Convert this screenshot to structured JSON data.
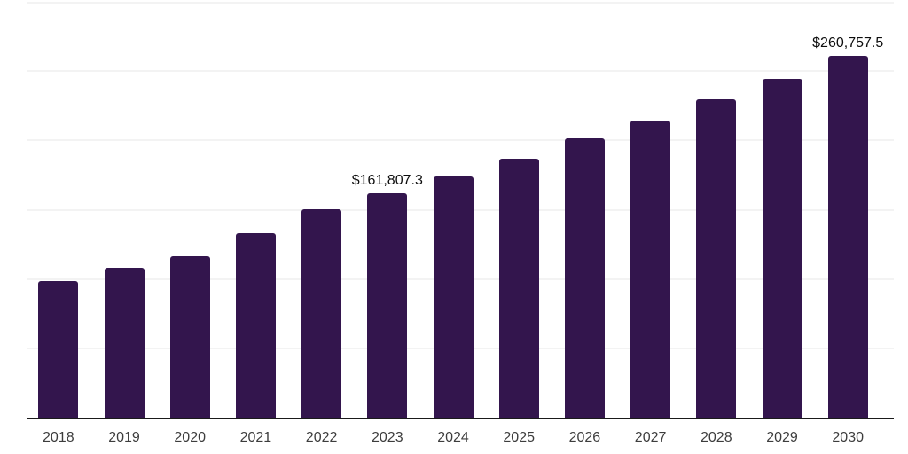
{
  "chart_data": {
    "type": "bar",
    "title": "",
    "xlabel": "",
    "ylabel": "",
    "categories": [
      "2018",
      "2019",
      "2020",
      "2021",
      "2022",
      "2023",
      "2024",
      "2025",
      "2026",
      "2027",
      "2028",
      "2029",
      "2030"
    ],
    "values": [
      98800,
      107900,
      116400,
      133000,
      150400,
      161807.3,
      174000,
      186900,
      201300,
      214500,
      229400,
      244500,
      260757.5
    ],
    "data_labels": [
      {
        "category": "2023",
        "text": "$161,807.3"
      },
      {
        "category": "2030",
        "text": "$260,757.5"
      }
    ],
    "ylim": [
      0,
      300000
    ],
    "grid": {
      "visible": true,
      "step": 50000
    },
    "legend": {
      "visible": false
    },
    "y_tick_labels_visible": false,
    "colors": {
      "bar": "#33154d",
      "axis_line": "#1a1a1a",
      "gridline": "#f3f3f3",
      "tick_label": "#3d3d3d",
      "data_label": "#0d0d0d",
      "background": "#ffffff"
    }
  }
}
